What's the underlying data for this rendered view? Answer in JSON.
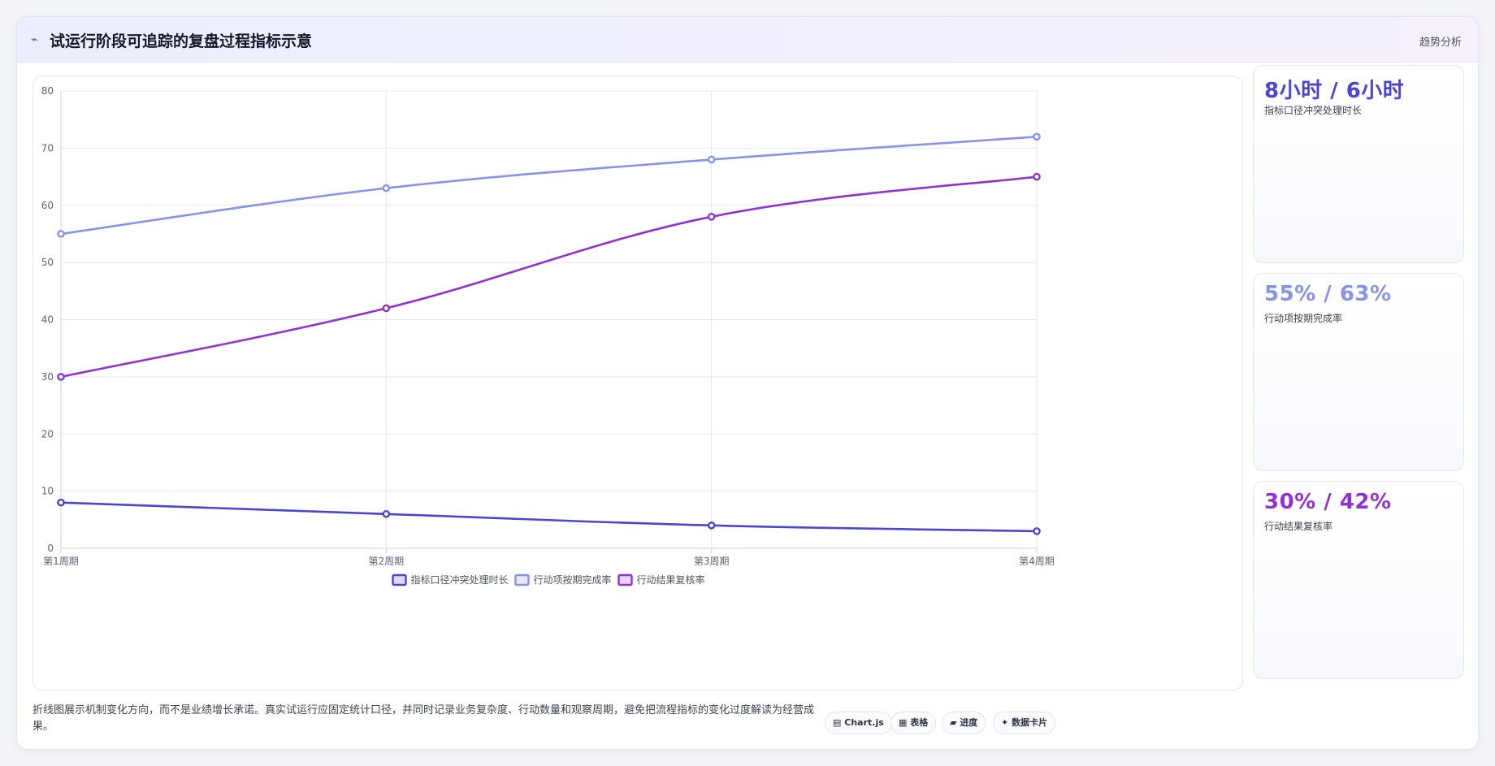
{
  "header": {
    "icon": "sparkle-icon",
    "title": "试运行阶段可追踪的复盘过程指标示意",
    "tag": "趋势分析"
  },
  "chart_data": {
    "type": "line",
    "categories": [
      "第1周期",
      "第2周期",
      "第3周期",
      "第4周期"
    ],
    "ylim": [
      0,
      80
    ],
    "yticks": [
      0,
      10,
      20,
      30,
      40,
      50,
      60,
      70,
      80
    ],
    "grid": true,
    "legend_position": "bottom",
    "series": [
      {
        "name": "指标口径冲突处理时长",
        "values": [
          8,
          6,
          4,
          3
        ],
        "color": "#4b45cf"
      },
      {
        "name": "行动项按期完成率",
        "values": [
          55,
          63,
          68,
          72
        ],
        "color": "#8892e6"
      },
      {
        "name": "行动结果复核率",
        "values": [
          30,
          42,
          58,
          65
        ],
        "color": "#9231d2"
      }
    ]
  },
  "cards": [
    {
      "value": "8小时 / 6小时",
      "label": "指标口径冲突处理时长",
      "color": "#4b45cf"
    },
    {
      "value": "55% / 63%",
      "label": "行动项按期完成率",
      "color": "#8892e6"
    },
    {
      "value": "30% / 42%",
      "label": "行动结果复核率",
      "color": "#9231d2"
    }
  ],
  "footer": {
    "note": "折线图展示机制变化方向，而不是业绩增长承诺。真实试运行应固定统计口径，并同时记录业务复杂度、行动数量和观察周期，避免把流程指标的变化过度解读为经营成果。",
    "tags": [
      {
        "icon": "chart-icon",
        "glyph": "▤",
        "label": "Chart.js"
      },
      {
        "icon": "table-icon",
        "glyph": "▦",
        "label": "表格"
      },
      {
        "icon": "progress-icon",
        "glyph": "▰",
        "label": "进度"
      },
      {
        "icon": "card-icon",
        "glyph": "✦",
        "label": "数据卡片"
      }
    ]
  }
}
